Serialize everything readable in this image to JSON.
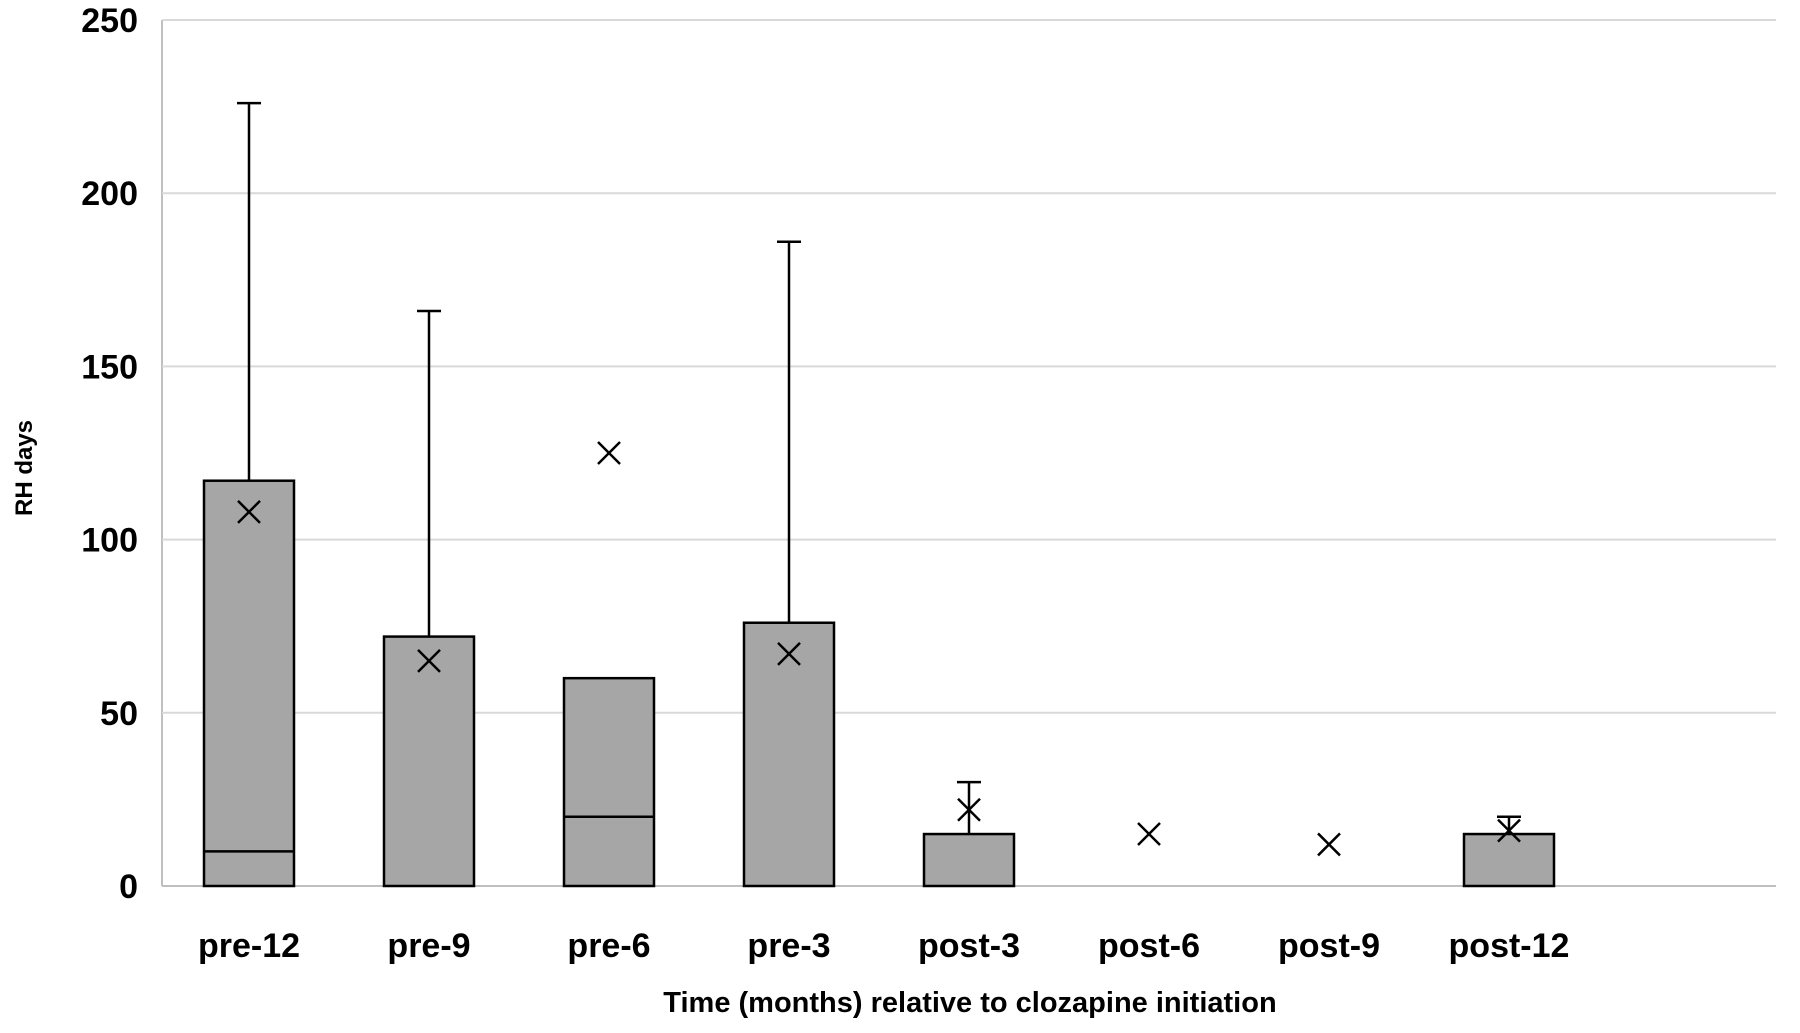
{
  "chart_data": {
    "type": "box",
    "xlabel": "Time (months) relative to clozapine initiation",
    "ylabel": "RH days",
    "ylim": [
      0,
      250
    ],
    "yticks": [
      0,
      50,
      100,
      150,
      200,
      250
    ],
    "grid": true,
    "categories": [
      "pre-12",
      "pre-9",
      "pre-6",
      "pre-3",
      "post-3",
      "post-6",
      "post-9",
      "post-12"
    ],
    "boxes": [
      {
        "category": "pre-12",
        "q1": 0,
        "median": 10,
        "q3": 117,
        "whisker_max": 226,
        "mean": 108
      },
      {
        "category": "pre-9",
        "q1": 0,
        "median": 0,
        "q3": 72,
        "whisker_max": 166,
        "mean": 65
      },
      {
        "category": "pre-6",
        "q1": 0,
        "median": 20,
        "q3": 60,
        "whisker_max": null,
        "mean": 125
      },
      {
        "category": "pre-3",
        "q1": 0,
        "median": 0,
        "q3": 76,
        "whisker_max": 186,
        "mean": 67
      },
      {
        "category": "post-3",
        "q1": 0,
        "median": 0,
        "q3": 15,
        "whisker_max": 30,
        "mean": 22
      },
      {
        "category": "post-6",
        "q1": null,
        "median": null,
        "q3": null,
        "whisker_max": null,
        "mean": 15
      },
      {
        "category": "post-9",
        "q1": null,
        "median": null,
        "q3": null,
        "whisker_max": null,
        "mean": 12
      },
      {
        "category": "post-12",
        "q1": 0,
        "median": 0,
        "q3": 15,
        "whisker_max": 20,
        "mean": 16
      }
    ],
    "colors": {
      "box_fill": "#a6a6a6",
      "box_stroke": "#000000",
      "grid": "#d9d9d9",
      "axis": "#bfbfbf"
    }
  }
}
